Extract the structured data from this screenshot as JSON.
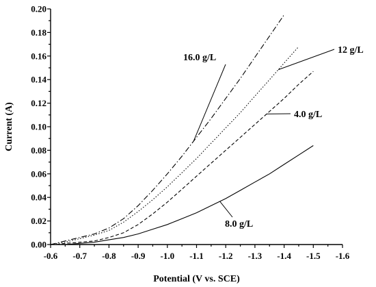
{
  "chart_data": {
    "type": "line",
    "title": "",
    "xlabel": "Potential (V vs. SCE)",
    "ylabel": "Current (A)",
    "xlim": [
      -0.6,
      -1.6
    ],
    "ylim": [
      0.0,
      0.2
    ],
    "x_tick_labels": [
      "-0.6",
      "-0.7",
      "-0.8",
      "-0.9",
      "-1.0",
      "-1.1",
      "-1.2",
      "-1.3",
      "-1.4",
      "-1.5",
      "-1.6"
    ],
    "y_tick_labels": [
      "0.00",
      "0.02",
      "0.04",
      "0.06",
      "0.08",
      "0.10",
      "0.12",
      "0.14",
      "0.16",
      "0.18",
      "0.20"
    ],
    "grid": false,
    "series": [
      {
        "name": "8.0 g/L",
        "dash": "solid",
        "x": [
          -0.65,
          -0.7,
          -0.75,
          -0.8,
          -0.85,
          -0.9,
          -0.95,
          -1.0,
          -1.05,
          -1.1,
          -1.15,
          -1.2,
          -1.25,
          -1.3,
          -1.35,
          -1.4,
          -1.45,
          -1.5
        ],
        "y": [
          0.0,
          0.001,
          0.002,
          0.004,
          0.006,
          0.009,
          0.013,
          0.017,
          0.022,
          0.027,
          0.033,
          0.039,
          0.046,
          0.053,
          0.06,
          0.068,
          0.076,
          0.084
        ]
      },
      {
        "name": "4.0 g/L",
        "dash": "dashed",
        "x": [
          -0.62,
          -0.65,
          -0.7,
          -0.75,
          -0.8,
          -0.85,
          -0.9,
          -0.95,
          -1.0,
          -1.05,
          -1.1,
          -1.15,
          -1.2,
          -1.25,
          -1.3,
          -1.35,
          -1.4,
          -1.45,
          -1.5
        ],
        "y": [
          0.0,
          0.001,
          0.002,
          0.003,
          0.006,
          0.01,
          0.017,
          0.026,
          0.036,
          0.047,
          0.058,
          0.069,
          0.08,
          0.091,
          0.102,
          0.113,
          0.124,
          0.136,
          0.147
        ]
      },
      {
        "name": "12 g/L",
        "dash": "dotted",
        "x": [
          -0.6,
          -0.65,
          -0.7,
          -0.75,
          -0.8,
          -0.85,
          -0.9,
          -0.95,
          -1.0,
          -1.05,
          -1.1,
          -1.15,
          -1.2,
          -1.25,
          -1.3,
          -1.35,
          -1.4,
          -1.45
        ],
        "y": [
          0.0,
          0.002,
          0.005,
          0.008,
          0.012,
          0.019,
          0.028,
          0.038,
          0.049,
          0.061,
          0.073,
          0.086,
          0.099,
          0.112,
          0.126,
          0.14,
          0.154,
          0.168
        ]
      },
      {
        "name": "16.0 g/L",
        "dash": "dashdot",
        "x": [
          -0.6,
          -0.65,
          -0.7,
          -0.75,
          -0.8,
          -0.85,
          -0.9,
          -0.95,
          -1.0,
          -1.05,
          -1.1,
          -1.15,
          -1.2,
          -1.25,
          -1.3,
          -1.35,
          -1.4
        ],
        "y": [
          0.0,
          0.003,
          0.006,
          0.009,
          0.014,
          0.022,
          0.033,
          0.046,
          0.06,
          0.075,
          0.091,
          0.107,
          0.124,
          0.141,
          0.159,
          0.177,
          0.195
        ]
      }
    ],
    "annotations": [
      {
        "text": "16.0 g/L",
        "series": "16.0 g/L"
      },
      {
        "text": "12 g/L",
        "series": "12 g/L"
      },
      {
        "text": "4.0 g/L",
        "series": "4.0 g/L"
      },
      {
        "text": "8.0 g/L",
        "series": "8.0 g/L"
      }
    ]
  }
}
